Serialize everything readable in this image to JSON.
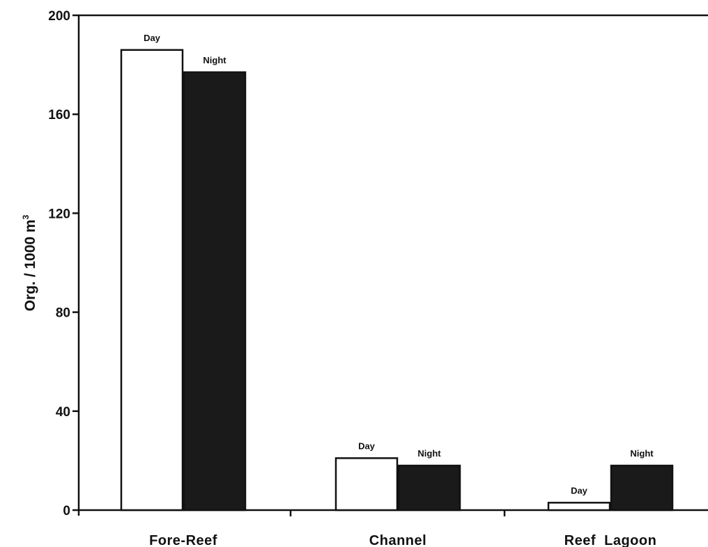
{
  "chart_data": {
    "type": "bar",
    "title": "",
    "xlabel": "",
    "ylabel": "Org. / 1000 m",
    "ylabel_superscript": "3",
    "categories": [
      "Fore-Reef",
      "Channel",
      "Reef  Lagoon"
    ],
    "series": [
      {
        "name": "Day",
        "color": "#ffffff",
        "stroke": "#111111",
        "values": [
          186,
          21,
          3
        ],
        "labels": [
          "Day",
          "Day",
          "Day"
        ]
      },
      {
        "name": "Night",
        "color": "#1a1a1a",
        "stroke": "#111111",
        "values": [
          177,
          18,
          18
        ],
        "labels": [
          "Night",
          "Night",
          "Night"
        ]
      }
    ],
    "ylim": [
      0,
      200
    ],
    "yticks": [
      0,
      40,
      80,
      120,
      160,
      200
    ],
    "ytick_labels": [
      "0",
      "40",
      "80",
      "120",
      "160",
      "200"
    ],
    "grid": false,
    "legend": "none"
  }
}
